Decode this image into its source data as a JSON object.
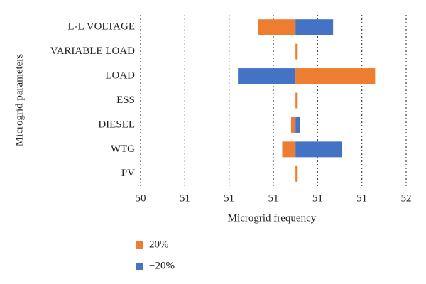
{
  "chart_data": {
    "type": "tornado",
    "x_label": "Microgrid frequency",
    "y_label": "Microgrid parameters",
    "categories": [
      "L-L VOLTAGE",
      "VARIABLE LOAD",
      "LOAD",
      "ESS",
      "DIESEL",
      "WTG",
      "PV"
    ],
    "baseline": 51.1,
    "series": [
      {
        "name": "20%",
        "color": "#ed7d31",
        "values": [
          50.93,
          51.11,
          51.46,
          51.11,
          51.08,
          51.04,
          51.11
        ]
      },
      {
        "name": "−20%",
        "color": "#4472c4",
        "values": [
          51.27,
          51.1,
          50.84,
          51.1,
          51.12,
          51.31,
          51.1
        ]
      }
    ],
    "xlim": [
      50.4,
      51.6
    ],
    "xticks": [
      {
        "value": 50.4,
        "label": "50"
      },
      {
        "value": 50.6,
        "label": "51"
      },
      {
        "value": 50.8,
        "label": "51"
      },
      {
        "value": 51.0,
        "label": "51"
      },
      {
        "value": 51.2,
        "label": "51"
      },
      {
        "value": 51.4,
        "label": "51"
      },
      {
        "value": 51.6,
        "label": "52"
      }
    ],
    "grid": true,
    "legend": "bottom"
  }
}
